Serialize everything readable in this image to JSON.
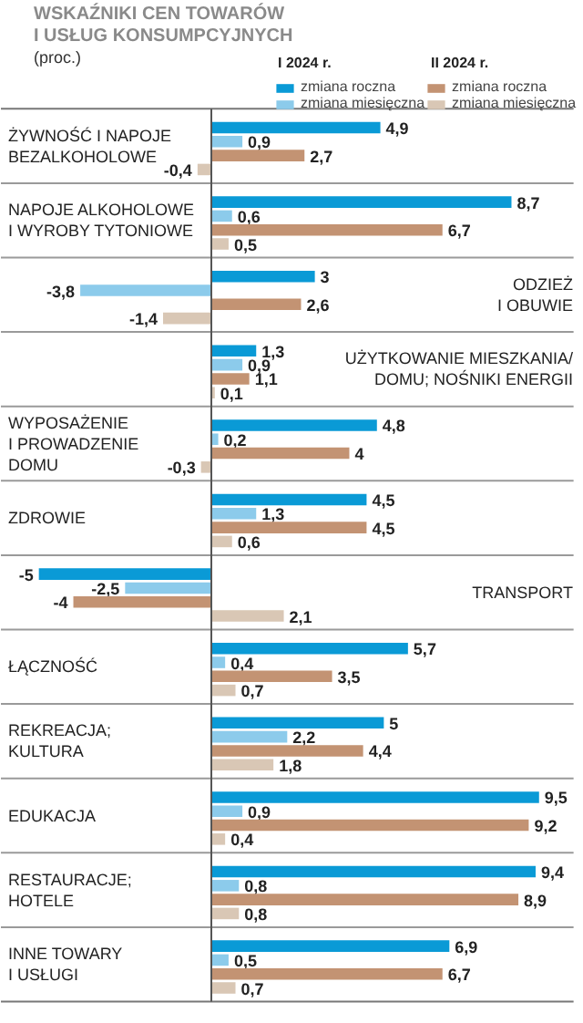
{
  "chart_data": {
    "type": "bar",
    "orientation": "horizontal",
    "title": "WSKAŹNIKI CEN TOWARÓW\nI USŁUG KONSUMPCYJNYCH",
    "subtitle": "(proc.)",
    "categories": [
      "ŻYWNOŚĆ I NAPOJE\nBEZALKOHOLOWE",
      "NAPOJE ALKOHOLOWE\nI WYROBY TYTONIOWE",
      "ODZIEŻ\nI OBUWIE",
      "UŻYTKOWANIE MIESZKANIA/\nDOMU; NOŚNIKI ENERGII",
      "WYPOSAŻENIE\nI PROWADZENIE\nDOMU",
      "ZDROWIE",
      "TRANSPORT",
      "ŁĄCZNOŚĆ",
      "REKREACJA;\nKULTURA",
      "EDUKACJA",
      "RESTAURACJE;\nHOTELE",
      "INNE TOWARY\nI USŁUGI"
    ],
    "annotations": [
      "I 2024 r.",
      "II 2024 r."
    ],
    "series": [
      {
        "name": "zmiana roczna",
        "color": "#0a9ad6",
        "values": [
          4.9,
          8.7,
          3,
          1.3,
          4.8,
          4.5,
          -5,
          5.7,
          5,
          9.5,
          9.4,
          6.9
        ],
        "value_labels": [
          "4,9",
          "8,7",
          "3",
          "1,3",
          "4,8",
          "4,5",
          "-5",
          "5,7",
          "5",
          "9,5",
          "9,4",
          "6,9"
        ]
      },
      {
        "name": "zmiana miesięczna",
        "color": "#8ccbeb",
        "values": [
          0.9,
          0.6,
          -3.8,
          0.9,
          0.2,
          1.3,
          -2.5,
          0.4,
          2.2,
          0.9,
          0.8,
          0.5
        ],
        "value_labels": [
          "0,9",
          "0,6",
          "-3,8",
          "0,9",
          "0,2",
          "1,3",
          "-2,5",
          "0,4",
          "2,2",
          "0,9",
          "0,8",
          "0,5"
        ]
      },
      {
        "name": "zmiana roczna",
        "color": "#c39373",
        "values": [
          2.7,
          6.7,
          2.6,
          1.1,
          4,
          4.5,
          -4,
          3.5,
          4.4,
          9.2,
          8.9,
          6.7
        ],
        "value_labels": [
          "2,7",
          "6,7",
          "2,6",
          "1,1",
          "4",
          "4,5",
          "-4",
          "3,5",
          "4,4",
          "9,2",
          "8,9",
          "6,7"
        ]
      },
      {
        "name": "zmiana miesięczna",
        "color": "#d9c7b5",
        "values": [
          -0.4,
          0.5,
          -1.4,
          0.1,
          -0.3,
          0.6,
          2.1,
          0.7,
          1.8,
          0.4,
          0.8,
          0.7
        ],
        "value_labels": [
          "-0,4",
          "0,5",
          "-1,4",
          "0,1",
          "-0,3",
          "0,6",
          "2,1",
          "0,7",
          "1,8",
          "0,4",
          "0,8",
          "0,7"
        ]
      }
    ],
    "xlim": [
      -6.1,
      10.8
    ],
    "legend": "top right",
    "grid": false
  }
}
